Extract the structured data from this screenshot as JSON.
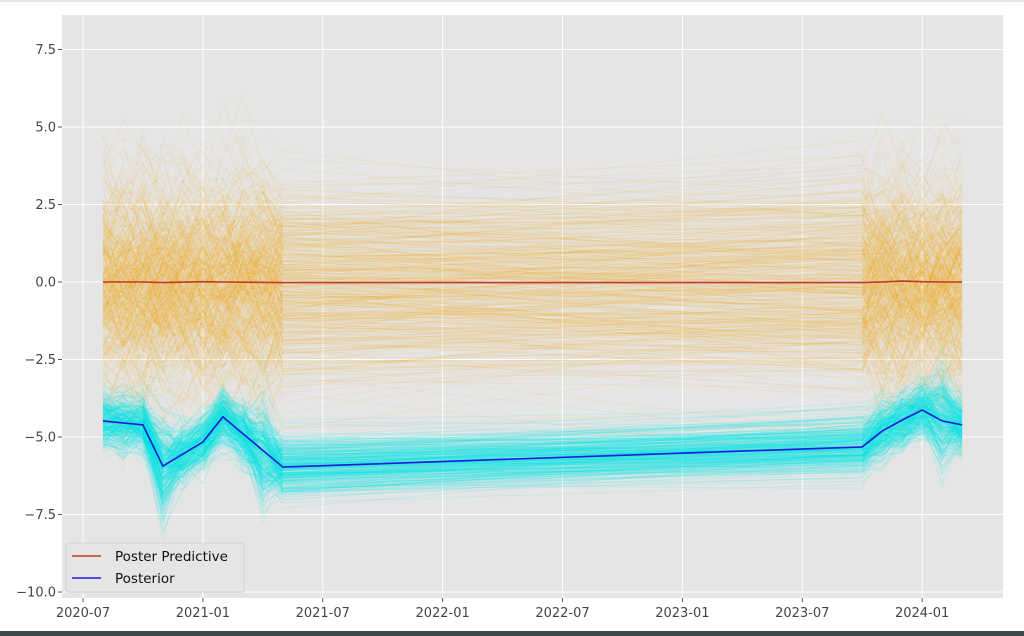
{
  "chart_data": {
    "type": "line",
    "title": "",
    "xlabel": "",
    "ylabel": "",
    "ylim": [
      -10.3,
      8.5
    ],
    "xlim": [
      "2020-06",
      "2024-05"
    ],
    "grid": true,
    "legend_placement": "lower-left",
    "y_ticks": [
      "7.5",
      "5.0",
      "2.5",
      "0.0",
      "−2.5",
      "−5.0",
      "−7.5",
      "−10.0"
    ],
    "y_tick_values": [
      7.5,
      5.0,
      2.5,
      0.0,
      -2.5,
      -5.0,
      -7.5,
      -10.0
    ],
    "x_ticks": [
      "2020-07",
      "2021-01",
      "2021-07",
      "2022-01",
      "2022-07",
      "2023-01",
      "2023-07",
      "2024-01"
    ],
    "x": [
      "2020-08",
      "2020-10",
      "2020-11",
      "2021-01",
      "2021-02",
      "2021-05",
      "2023-10",
      "2023-11",
      "2023-12",
      "2024-01",
      "2024-02",
      "2024-03"
    ],
    "series": [
      {
        "name": "Poster Predictive",
        "color": "#c0392b",
        "values": [
          0.0,
          0.0,
          -0.02,
          0.01,
          0.0,
          -0.02,
          -0.02,
          0.0,
          0.03,
          0.01,
          0.0,
          0.0
        ]
      },
      {
        "name": "Posterior",
        "color": "#1a1adb",
        "values": [
          -4.48,
          -4.61,
          -5.94,
          -5.16,
          -4.35,
          -5.97,
          -5.32,
          -4.81,
          -4.45,
          -4.13,
          -4.48,
          -4.61
        ]
      }
    ],
    "sample_bands": [
      {
        "of": "Poster Predictive",
        "color": "#f0a30a"
      },
      {
        "of": "Posterior",
        "color": "#00e5e5"
      }
    ]
  }
}
